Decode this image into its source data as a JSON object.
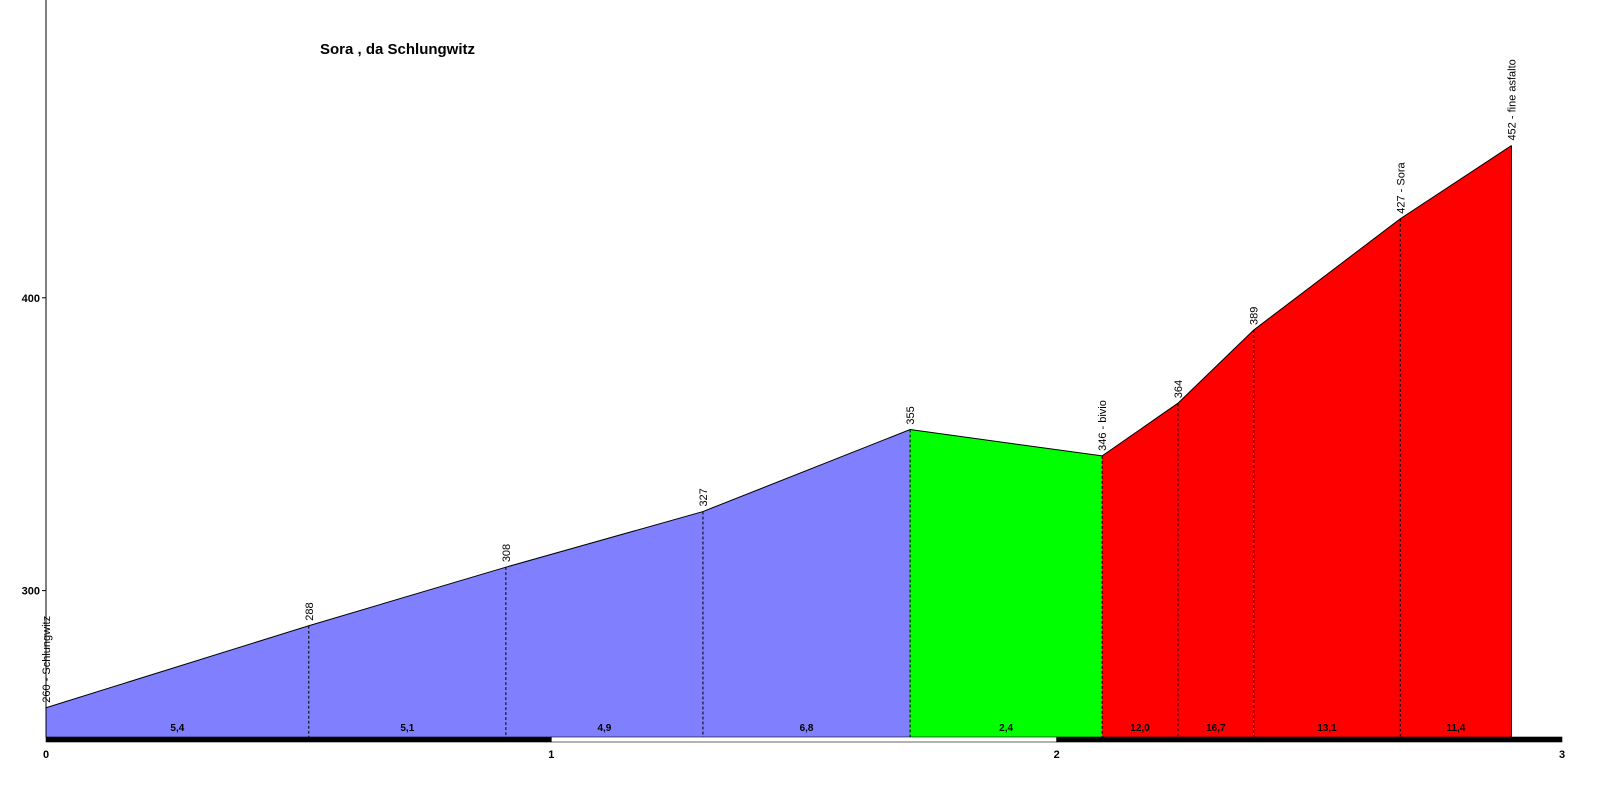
{
  "chart_data": {
    "type": "area",
    "title": "Sora , da Schlungwitz",
    "xlabel": "",
    "ylabel": "",
    "xlim": [
      0,
      3
    ],
    "ylim": [
      250,
      500
    ],
    "x_ticks": [
      "0",
      "1",
      "2",
      "3"
    ],
    "y_ticks": [
      "300",
      "400"
    ],
    "points": [
      {
        "x": 0.0,
        "y": 260,
        "label": "260 - Schlungwitz"
      },
      {
        "x": 0.52,
        "y": 288,
        "label": "288"
      },
      {
        "x": 0.91,
        "y": 308,
        "label": "308"
      },
      {
        "x": 1.3,
        "y": 327,
        "label": "327"
      },
      {
        "x": 1.71,
        "y": 355,
        "label": "355"
      },
      {
        "x": 2.09,
        "y": 346,
        "label": "346 - bivio"
      },
      {
        "x": 2.24,
        "y": 364,
        "label": "364"
      },
      {
        "x": 2.39,
        "y": 389,
        "label": "389"
      },
      {
        "x": 2.68,
        "y": 427,
        "label": "427 - Sora"
      },
      {
        "x": 2.9,
        "y": 452,
        "label": "452 - fine asfalto"
      }
    ],
    "segments": [
      {
        "gradient": "5,4",
        "color": "#8080ff"
      },
      {
        "gradient": "5,1",
        "color": "#8080ff"
      },
      {
        "gradient": "4,9",
        "color": "#8080ff"
      },
      {
        "gradient": "6,8",
        "color": "#8080ff"
      },
      {
        "gradient": "2,4",
        "color": "#00ff00"
      },
      {
        "gradient": "12,0",
        "color": "#ff0000"
      },
      {
        "gradient": "16,7",
        "color": "#ff0000"
      },
      {
        "gradient": "13,1",
        "color": "#ff0000"
      },
      {
        "gradient": "11,4",
        "color": "#ff0000"
      }
    ]
  }
}
